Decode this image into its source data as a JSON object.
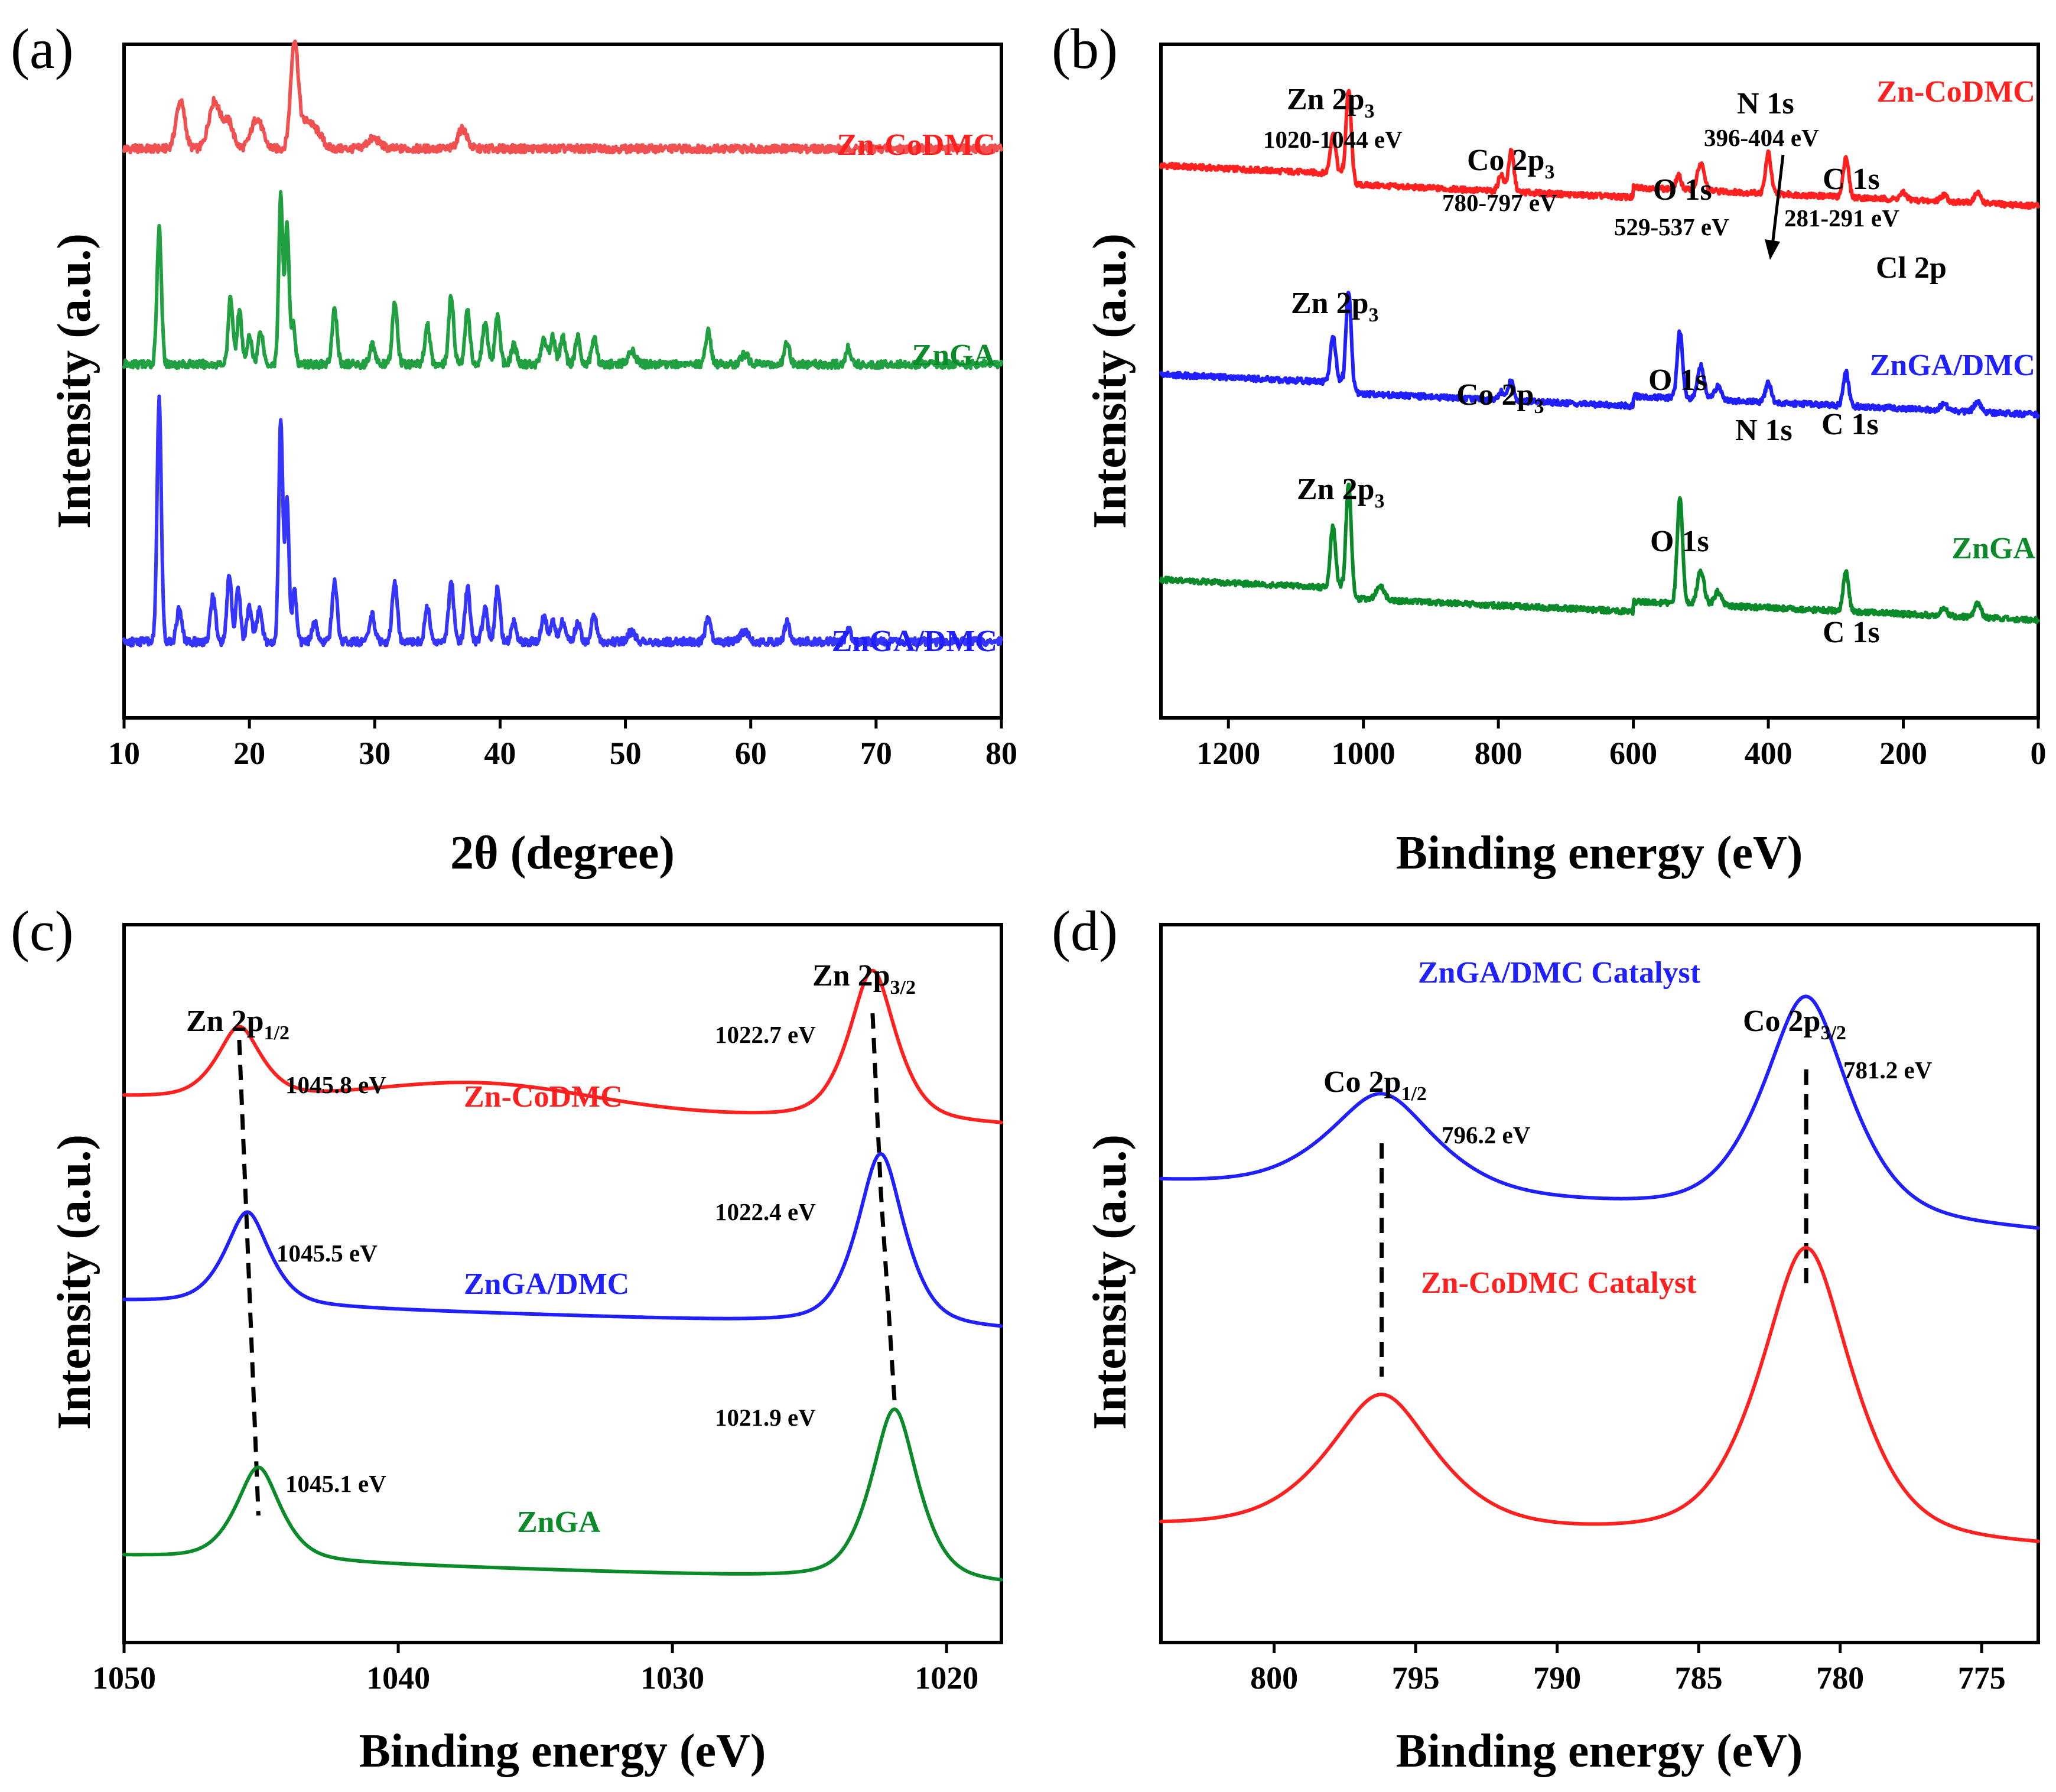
{
  "colors": {
    "red": "#ff2020",
    "green": "#0b8a2a",
    "blue": "#1f1fff",
    "red_light": "#f05050",
    "green_light": "#20a040",
    "blue_light": "#3535ff",
    "axis": "#000000"
  },
  "chart_data": [
    {
      "id": "a",
      "panel_letter": "(a)",
      "type": "line",
      "title": "",
      "xlabel": "2θ (degree)",
      "ylabel": "Intensity (a.u.)",
      "xlim": [
        10,
        80
      ],
      "x_reversed": false,
      "xticks": [
        10,
        20,
        30,
        40,
        50,
        60,
        70,
        80
      ],
      "xtick_labels": [
        "10",
        "20",
        "30",
        "40",
        "50",
        "60",
        "70",
        "80"
      ],
      "series": [
        {
          "name": "Zn-CoDMC",
          "label": "Zn-CoDMC",
          "color": "#f05050",
          "baseline": 0.845,
          "peaks": [
            [
              14.5,
              0.07,
              0.35
            ],
            [
              17.2,
              0.07,
              0.45
            ],
            [
              18.3,
              0.04,
              0.4
            ],
            [
              20.6,
              0.045,
              0.45
            ],
            [
              23.6,
              0.16,
              0.3
            ],
            [
              24.6,
              0.04,
              0.45
            ],
            [
              25.5,
              0.02,
              0.4
            ],
            [
              29.9,
              0.015,
              0.5
            ],
            [
              37.0,
              0.03,
              0.35
            ]
          ]
        },
        {
          "name": "ZnGA",
          "label": "ZnGA",
          "color": "#20a040",
          "baseline": 0.525,
          "peaks": [
            [
              12.8,
              0.2,
              0.18
            ],
            [
              18.5,
              0.1,
              0.18
            ],
            [
              19.2,
              0.08,
              0.18
            ],
            [
              20.0,
              0.04,
              0.2
            ],
            [
              20.9,
              0.05,
              0.2
            ],
            [
              22.5,
              0.25,
              0.16
            ],
            [
              23.0,
              0.21,
              0.16
            ],
            [
              23.5,
              0.06,
              0.16
            ],
            [
              26.8,
              0.08,
              0.2
            ],
            [
              29.8,
              0.03,
              0.2
            ],
            [
              31.6,
              0.09,
              0.2
            ],
            [
              34.2,
              0.06,
              0.2
            ],
            [
              36.1,
              0.1,
              0.2
            ],
            [
              37.4,
              0.08,
              0.2
            ],
            [
              38.8,
              0.06,
              0.2
            ],
            [
              39.8,
              0.07,
              0.2
            ],
            [
              41.1,
              0.03,
              0.2
            ],
            [
              43.5,
              0.04,
              0.2
            ],
            [
              44.2,
              0.04,
              0.2
            ],
            [
              45.0,
              0.04,
              0.2
            ],
            [
              46.2,
              0.04,
              0.2
            ],
            [
              47.5,
              0.04,
              0.2
            ],
            [
              50.5,
              0.02,
              0.3
            ],
            [
              56.6,
              0.05,
              0.2
            ],
            [
              59.5,
              0.015,
              0.3
            ],
            [
              62.9,
              0.035,
              0.2
            ],
            [
              67.8,
              0.025,
              0.2
            ]
          ]
        },
        {
          "name": "ZnGA/DMC",
          "label": "ZnGA/DMC",
          "color": "#3535ff",
          "baseline": 0.113,
          "peaks": [
            [
              12.8,
              0.36,
              0.17
            ],
            [
              14.4,
              0.05,
              0.2
            ],
            [
              17.1,
              0.07,
              0.2
            ],
            [
              18.4,
              0.1,
              0.18
            ],
            [
              19.1,
              0.08,
              0.18
            ],
            [
              20.0,
              0.05,
              0.2
            ],
            [
              20.8,
              0.05,
              0.2
            ],
            [
              22.5,
              0.33,
              0.16
            ],
            [
              23.0,
              0.21,
              0.16
            ],
            [
              23.6,
              0.08,
              0.16
            ],
            [
              25.2,
              0.03,
              0.2
            ],
            [
              26.8,
              0.09,
              0.2
            ],
            [
              29.8,
              0.04,
              0.2
            ],
            [
              31.6,
              0.09,
              0.2
            ],
            [
              34.2,
              0.05,
              0.2
            ],
            [
              36.1,
              0.09,
              0.2
            ],
            [
              37.4,
              0.08,
              0.2
            ],
            [
              38.8,
              0.05,
              0.2
            ],
            [
              39.8,
              0.08,
              0.2
            ],
            [
              41.1,
              0.03,
              0.2
            ],
            [
              43.5,
              0.04,
              0.2
            ],
            [
              44.2,
              0.03,
              0.2
            ],
            [
              45.0,
              0.03,
              0.2
            ],
            [
              46.2,
              0.03,
              0.2
            ],
            [
              47.5,
              0.04,
              0.2
            ],
            [
              50.5,
              0.015,
              0.3
            ],
            [
              56.6,
              0.04,
              0.2
            ],
            [
              59.5,
              0.015,
              0.3
            ],
            [
              62.9,
              0.03,
              0.2
            ],
            [
              67.8,
              0.02,
              0.2
            ]
          ]
        }
      ]
    },
    {
      "id": "b",
      "panel_letter": "(b)",
      "type": "line",
      "title": "",
      "xlabel": "Binding energy (eV)",
      "ylabel": "Intensity (a.u.)",
      "xlim": [
        1300,
        0
      ],
      "x_reversed": true,
      "xticks": [
        1200,
        1000,
        800,
        600,
        400,
        200,
        0
      ],
      "xtick_labels": [
        "1200",
        "1000",
        "800",
        "600",
        "400",
        "200",
        "0"
      ],
      "series": [
        {
          "name": "Zn-CoDMC",
          "label": "Zn-CoDMC",
          "color": "#ff2020",
          "baseline": 0.79,
          "slope": 0.1,
          "peaks": [
            [
              1045,
              0.06,
              4
            ],
            [
              1022,
              0.14,
              4
            ],
            [
              796,
              0.025,
              4
            ],
            [
              781,
              0.06,
              4
            ],
            [
              533,
              0.02,
              4
            ],
            [
              500,
              0.04,
              5
            ],
            [
              400,
              0.06,
              4
            ],
            [
              285,
              0.06,
              4
            ],
            [
              200,
              0.01,
              5
            ],
            [
              140,
              0.01,
              5
            ],
            [
              90,
              0.015,
              5
            ]
          ]
        },
        {
          "name": "ZnGA/DMC",
          "label": "ZnGA/DMC",
          "color": "#1f1fff",
          "baseline": 0.48,
          "slope": 0.1,
          "peaks": [
            [
              1045,
              0.07,
              4
            ],
            [
              1022,
              0.15,
              4
            ],
            [
              796,
              0.012,
              4
            ],
            [
              781,
              0.03,
              4
            ],
            [
              531,
              0.1,
              4
            ],
            [
              500,
              0.05,
              5
            ],
            [
              475,
              0.02,
              5
            ],
            [
              400,
              0.03,
              4
            ],
            [
              285,
              0.05,
              4
            ],
            [
              140,
              0.01,
              5
            ],
            [
              90,
              0.015,
              5
            ]
          ]
        },
        {
          "name": "ZnGA",
          "label": "ZnGA",
          "color": "#0b8a2a",
          "baseline": 0.175,
          "slope": 0.1,
          "peaks": [
            [
              1045,
              0.09,
              4
            ],
            [
              1022,
              0.17,
              4
            ],
            [
              975,
              0.02,
              6
            ],
            [
              531,
              0.16,
              4
            ],
            [
              500,
              0.05,
              5
            ],
            [
              475,
              0.02,
              5
            ],
            [
              285,
              0.06,
              4
            ],
            [
              140,
              0.01,
              5
            ],
            [
              90,
              0.02,
              5
            ]
          ]
        }
      ],
      "annotations": {
        "zn2p3_top": {
          "main": "Zn 2p",
          "sub": "3",
          "range": "1020-1044 eV"
        },
        "co2p3_top": {
          "main": "Co 2p",
          "sub": "3",
          "range": "780-797 eV"
        },
        "o1s_top": {
          "main": "O 1s",
          "range": "529-537 eV"
        },
        "n1s_top": {
          "main": "N 1s",
          "range": "396-404 eV"
        },
        "c1s_top": {
          "main": "C 1s",
          "range": "281-291 eV"
        },
        "cl2p_top": {
          "main": "Cl 2p"
        },
        "zn2p3_mid": {
          "main": "Zn 2p",
          "sub": "3"
        },
        "co2p3_mid": {
          "main": "Co 2p",
          "sub": "3"
        },
        "o1s_mid": {
          "main": "O 1s"
        },
        "n1s_mid": {
          "main": "N 1s"
        },
        "c1s_mid": {
          "main": "C 1s"
        },
        "zn2p3_bot": {
          "main": "Zn 2p",
          "sub": "3"
        },
        "o1s_bot": {
          "main": "O 1s"
        },
        "c1s_bot": {
          "main": "C 1s"
        }
      }
    },
    {
      "id": "c",
      "panel_letter": "(c)",
      "type": "line",
      "title": "",
      "xlabel": "Binding energy (eV)",
      "ylabel": "Intensity (a.u.)",
      "xlim": [
        1050,
        1018
      ],
      "x_reversed": true,
      "xticks": [
        1050,
        1040,
        1030,
        1020
      ],
      "xtick_labels": [
        "1050",
        "1040",
        "1030",
        "1020"
      ],
      "series": [
        {
          "name": "Zn-CoDMC",
          "label": "Zn-CoDMC",
          "color": "#ff2020",
          "baseline": 0.76,
          "slope": -0.04,
          "hump": [
            1037,
            0.035,
            4
          ],
          "peaks": [
            [
              1045.8,
              0.1,
              0.85
            ],
            [
              1022.7,
              0.21,
              0.9
            ]
          ],
          "peak_labels": [
            "1045.8 eV",
            "1022.7 eV"
          ]
        },
        {
          "name": "ZnGA/DMC",
          "label": "ZnGA/DMC",
          "color": "#1f1fff",
          "baseline": 0.475,
          "slope": -0.04,
          "peaks": [
            [
              1045.5,
              0.13,
              0.85
            ],
            [
              1022.4,
              0.24,
              0.9
            ]
          ],
          "peak_labels": [
            "1045.5 eV",
            "1022.4 eV"
          ]
        },
        {
          "name": "ZnGA",
          "label": "ZnGA",
          "color": "#0b8a2a",
          "baseline": 0.12,
          "slope": -0.04,
          "peaks": [
            [
              1045.1,
              0.13,
              0.85
            ],
            [
              1021.9,
              0.24,
              0.9
            ]
          ],
          "peak_labels": [
            "1045.1 eV",
            "1021.9 eV"
          ]
        }
      ],
      "peak_groups": [
        {
          "main": "Zn 2p",
          "sub": "1/2",
          "positions": [
            1045.8,
            1045.5,
            1045.1
          ]
        },
        {
          "main": "Zn 2p",
          "sub": "3/2",
          "positions": [
            1022.7,
            1022.4,
            1021.9
          ]
        }
      ]
    },
    {
      "id": "d",
      "panel_letter": "(d)",
      "type": "line",
      "title": "",
      "xlabel": "Binding energy (eV)",
      "ylabel": "Intensity (a.u.)",
      "xlim": [
        804,
        773
      ],
      "x_reversed": true,
      "xticks": [
        800,
        795,
        790,
        785,
        780,
        775
      ],
      "xtick_labels": [
        "800",
        "795",
        "790",
        "785",
        "780",
        "775"
      ],
      "series": [
        {
          "name": "ZnGA/DMC Catalyst",
          "label": "ZnGA/DMC Catalyst",
          "color": "#1f1fff",
          "baseline": 0.64,
          "slope": -0.07,
          "peaks": [
            [
              796.2,
              0.14,
              2.0
            ],
            [
              781.2,
              0.31,
              1.6
            ]
          ],
          "peak_labels": [
            "796.2 eV",
            "781.2 eV"
          ]
        },
        {
          "name": "Zn-CoDMC Catalyst",
          "label": "Zn-CoDMC Catalyst",
          "color": "#ff2020",
          "baseline": 0.16,
          "slope": -0.03,
          "tail": [
            773,
            0.12,
            6
          ],
          "peaks": [
            [
              796.2,
              0.19,
              2.0
            ],
            [
              781.2,
              0.41,
              1.7
            ]
          ]
        }
      ],
      "peak_groups": [
        {
          "main": "Co 2p",
          "sub": "1/2",
          "position": 796.2
        },
        {
          "main": "Co 2p",
          "sub": "3/2",
          "position": 781.2
        }
      ]
    }
  ]
}
